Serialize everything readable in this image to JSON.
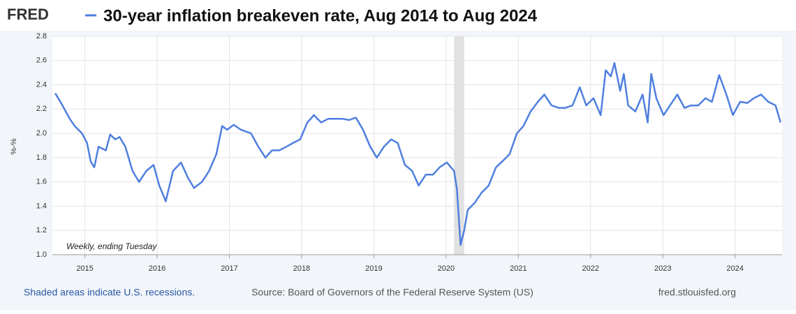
{
  "chart_data": {
    "type": "line",
    "brand": "FRED",
    "title": "30-year inflation breakeven rate, Aug 2014 to Aug 2024",
    "y_label": "%-%",
    "note": "Weekly, ending Tuesday",
    "footer_left": "Shaded areas indicate U.S. recessions.",
    "footer_center": "Source: Board of Governors of the Federal Reserve System (US)",
    "footer_right": "fred.stlouisfed.org",
    "xlim": [
      2014.55,
      2024.65
    ],
    "xticks": [
      2015,
      2016,
      2017,
      2018,
      2019,
      2020,
      2021,
      2022,
      2023,
      2024
    ],
    "ylim": [
      1.0,
      2.8
    ],
    "yticks": [
      {
        "value": 1.0,
        "label": "1.0"
      },
      1.2,
      1.4,
      1.6,
      1.8,
      {
        "value": 2.0,
        "label": "2.0"
      },
      2.2,
      2.4,
      2.6,
      2.8
    ],
    "grid": true,
    "recessions": [
      {
        "start": 2020.11,
        "end": 2020.25
      }
    ],
    "recession_color": "#e1e1e1",
    "x": [
      2014.59,
      2014.69,
      2014.79,
      2014.86,
      2014.96,
      2015.03,
      2015.08,
      2015.13,
      2015.19,
      2015.29,
      2015.35,
      2015.42,
      2015.48,
      2015.56,
      2015.66,
      2015.75,
      2015.85,
      2015.95,
      2016.03,
      2016.12,
      2016.22,
      2016.33,
      2016.43,
      2016.51,
      2016.62,
      2016.72,
      2016.82,
      2016.9,
      2016.97,
      2017.06,
      2017.16,
      2017.3,
      2017.4,
      2017.5,
      2017.59,
      2017.69,
      2017.79,
      2017.88,
      2017.98,
      2018.08,
      2018.17,
      2018.27,
      2018.37,
      2018.46,
      2018.56,
      2018.66,
      2018.75,
      2018.85,
      2018.95,
      2019.04,
      2019.14,
      2019.24,
      2019.33,
      2019.43,
      2019.53,
      2019.62,
      2019.72,
      2019.82,
      2019.91,
      2020.01,
      2020.11,
      2020.15,
      2020.2,
      2020.25,
      2020.3,
      2020.4,
      2020.49,
      2020.59,
      2020.69,
      2020.78,
      2020.88,
      2020.98,
      2021.07,
      2021.17,
      2021.27,
      2021.36,
      2021.46,
      2021.56,
      2021.65,
      2021.75,
      2021.85,
      2021.94,
      2022.04,
      2022.14,
      2022.21,
      2022.28,
      2022.33,
      2022.41,
      2022.46,
      2022.52,
      2022.62,
      2022.72,
      2022.79,
      2022.84,
      2022.91,
      2023.01,
      2023.1,
      2023.2,
      2023.3,
      2023.39,
      2023.49,
      2023.59,
      2023.68,
      2023.78,
      2023.88,
      2023.97,
      2024.07,
      2024.17,
      2024.26,
      2024.36,
      2024.46,
      2024.56,
      2024.63
    ],
    "series": [
      {
        "color": "#4f7fdf",
        "values": [
          2.33,
          2.23,
          2.12,
          2.06,
          2.0,
          1.92,
          1.77,
          1.72,
          1.89,
          1.86,
          1.99,
          1.95,
          1.97,
          1.89,
          1.69,
          1.6,
          1.69,
          1.74,
          1.57,
          1.44,
          1.69,
          1.76,
          1.63,
          1.55,
          1.6,
          1.69,
          1.83,
          2.06,
          2.03,
          2.07,
          2.03,
          2.0,
          1.89,
          1.8,
          1.86,
          1.86,
          1.89,
          1.92,
          1.95,
          2.09,
          2.15,
          2.09,
          2.12,
          2.12,
          2.12,
          2.11,
          2.13,
          2.03,
          1.89,
          1.8,
          1.89,
          1.95,
          1.92,
          1.74,
          1.69,
          1.57,
          1.66,
          1.66,
          1.72,
          1.76,
          1.69,
          1.54,
          1.08,
          1.2,
          1.37,
          1.43,
          1.51,
          1.57,
          1.72,
          1.77,
          1.83,
          2.0,
          2.06,
          2.18,
          2.26,
          2.32,
          2.23,
          2.21,
          2.21,
          2.23,
          2.38,
          2.23,
          2.29,
          2.15,
          2.52,
          2.47,
          2.58,
          2.35,
          2.49,
          2.23,
          2.18,
          2.32,
          2.09,
          2.49,
          2.29,
          2.15,
          2.23,
          2.32,
          2.21,
          2.23,
          2.23,
          2.29,
          2.26,
          2.48,
          2.32,
          2.15,
          2.26,
          2.25,
          2.29,
          2.32,
          2.26,
          2.23,
          2.09
        ]
      }
    ]
  }
}
